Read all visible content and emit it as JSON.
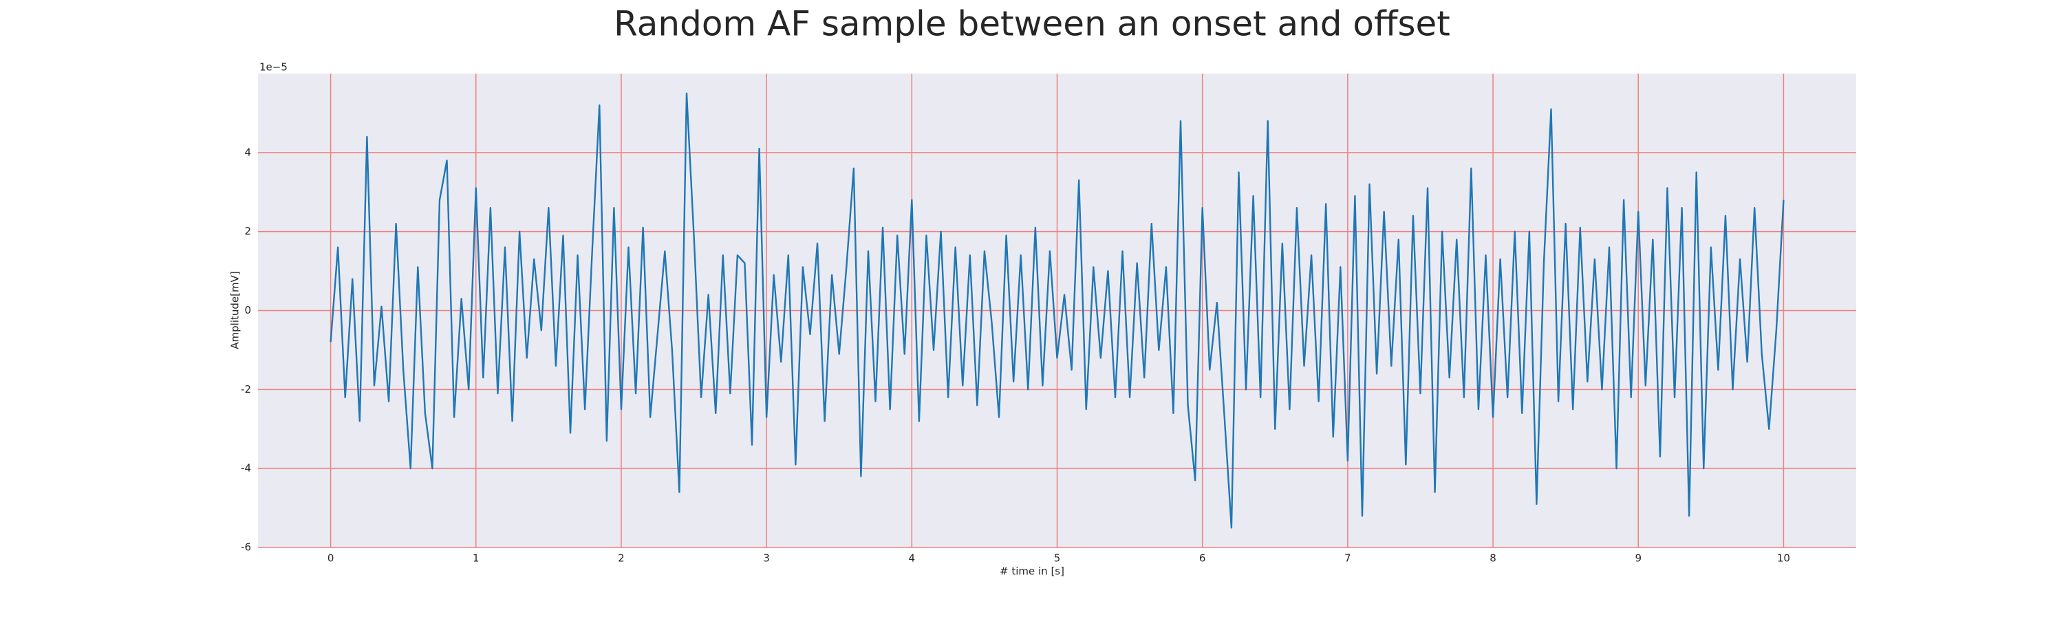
{
  "chart_data": {
    "type": "line",
    "title": "Random AF sample between an onset and offset",
    "xlabel": "# time in [s]",
    "ylabel": "Amplitude[mV]",
    "y_offset_label": "1e−5",
    "color": "#1f77b4",
    "background": "#eaeaf2",
    "grid": true,
    "grid_color": "#f08080",
    "xlim": [
      -0.5,
      10.5
    ],
    "xticks": [
      0,
      1,
      2,
      3,
      4,
      5,
      6,
      7,
      8,
      9,
      10
    ],
    "ylim": [
      -6,
      6
    ],
    "yticks": [
      -6,
      -4,
      -2,
      0,
      2,
      4
    ],
    "x": [
      0,
      0.05,
      0.1,
      0.15,
      0.2,
      0.25,
      0.3,
      0.35,
      0.4,
      0.45,
      0.5,
      0.55,
      0.6,
      0.65,
      0.7,
      0.75,
      0.8,
      0.85,
      0.9,
      0.95,
      1,
      1.05,
      1.1,
      1.15,
      1.2,
      1.25,
      1.3,
      1.35,
      1.4,
      1.45,
      1.5,
      1.55,
      1.6,
      1.65,
      1.7,
      1.75,
      1.8,
      1.85,
      1.9,
      1.95,
      2,
      2.05,
      2.1,
      2.15,
      2.2,
      2.25,
      2.3,
      2.35,
      2.4,
      2.45,
      2.5,
      2.55,
      2.6,
      2.65,
      2.7,
      2.75,
      2.8,
      2.85,
      2.9,
      2.95,
      3,
      3.05,
      3.1,
      3.15,
      3.2,
      3.25,
      3.3,
      3.35,
      3.4,
      3.45,
      3.5,
      3.55,
      3.6,
      3.65,
      3.7,
      3.75,
      3.8,
      3.85,
      3.9,
      3.95,
      4,
      4.05,
      4.1,
      4.15,
      4.2,
      4.25,
      4.3,
      4.35,
      4.4,
      4.45,
      4.5,
      4.55,
      4.6,
      4.65,
      4.7,
      4.75,
      4.8,
      4.85,
      4.9,
      4.95,
      5,
      5.05,
      5.1,
      5.15,
      5.2,
      5.25,
      5.3,
      5.35,
      5.4,
      5.45,
      5.5,
      5.55,
      5.6,
      5.65,
      5.7,
      5.75,
      5.8,
      5.85,
      5.9,
      5.95,
      6,
      6.05,
      6.1,
      6.15,
      6.2,
      6.25,
      6.3,
      6.35,
      6.4,
      6.45,
      6.5,
      6.55,
      6.6,
      6.65,
      6.7,
      6.75,
      6.8,
      6.85,
      6.9,
      6.95,
      7,
      7.05,
      7.1,
      7.15,
      7.2,
      7.25,
      7.3,
      7.35,
      7.4,
      7.45,
      7.5,
      7.55,
      7.6,
      7.65,
      7.7,
      7.75,
      7.8,
      7.85,
      7.9,
      7.95,
      8,
      8.05,
      8.1,
      8.15,
      8.2,
      8.25,
      8.3,
      8.35,
      8.4,
      8.45,
      8.5,
      8.55,
      8.6,
      8.65,
      8.7,
      8.75,
      8.8,
      8.85,
      8.9,
      8.95,
      9,
      9.05,
      9.1,
      9.15,
      9.2,
      9.25,
      9.3,
      9.35,
      9.4,
      9.45,
      9.5,
      9.55,
      9.6,
      9.65,
      9.7,
      9.75,
      9.8,
      9.85,
      9.9,
      9.95,
      10
    ],
    "values": [
      -0.8,
      1.6,
      -2.2,
      0.8,
      -2.8,
      4.4,
      -1.9,
      0.1,
      -2.3,
      2.2,
      -1.5,
      -4.0,
      1.1,
      -2.6,
      -4.0,
      2.8,
      3.8,
      -2.7,
      0.3,
      -2.0,
      3.1,
      -1.7,
      2.6,
      -2.1,
      1.6,
      -2.8,
      2.0,
      -1.2,
      1.3,
      -0.5,
      2.6,
      -1.4,
      1.9,
      -3.1,
      1.4,
      -2.5,
      1.5,
      5.2,
      -3.3,
      2.6,
      -2.5,
      1.6,
      -2.1,
      2.1,
      -2.7,
      -0.6,
      1.5,
      -1.0,
      -4.6,
      5.5,
      1.9,
      -2.2,
      0.4,
      -2.6,
      1.4,
      -2.1,
      1.4,
      1.2,
      -3.4,
      4.1,
      -2.7,
      0.9,
      -1.3,
      1.4,
      -3.9,
      1.1,
      -0.6,
      1.7,
      -2.8,
      0.9,
      -1.1,
      1.1,
      3.6,
      -4.2,
      1.5,
      -2.3,
      2.1,
      -2.5,
      1.9,
      -1.1,
      2.8,
      -2.8,
      1.9,
      -1.0,
      2.0,
      -2.2,
      1.6,
      -1.9,
      1.4,
      -2.4,
      1.5,
      -0.3,
      -2.7,
      1.9,
      -1.8,
      1.4,
      -2.0,
      2.1,
      -1.9,
      1.5,
      -1.2,
      0.4,
      -1.5,
      3.3,
      -2.5,
      1.1,
      -1.2,
      1.0,
      -2.2,
      1.5,
      -2.2,
      1.2,
      -1.7,
      2.2,
      -1.0,
      1.1,
      -2.6,
      4.8,
      -2.4,
      -4.3,
      2.6,
      -1.5,
      0.2,
      -2.6,
      -5.5,
      3.5,
      -2.0,
      2.9,
      -2.2,
      4.8,
      -3.0,
      1.7,
      -2.5,
      2.6,
      -1.4,
      1.4,
      -2.3,
      2.7,
      -3.2,
      1.1,
      -3.8,
      2.9,
      -5.2,
      3.2,
      -1.6,
      2.5,
      -1.4,
      1.8,
      -3.9,
      2.4,
      -2.1,
      3.1,
      -4.6,
      2.0,
      -1.7,
      1.8,
      -2.2,
      3.6,
      -2.5,
      1.4,
      -2.7,
      1.3,
      -2.2,
      2.0,
      -2.6,
      2.0,
      -4.9,
      1.2,
      5.1,
      -2.3,
      2.2,
      -2.5,
      2.1,
      -1.8,
      1.3,
      -2.0,
      1.6,
      -4.0,
      2.8,
      -2.2,
      2.5,
      -1.9,
      1.8,
      -3.7,
      3.1,
      -2.2,
      2.6,
      -5.2,
      3.5,
      -4.0,
      1.6,
      -1.5,
      2.4,
      -2.0,
      1.3,
      -1.3,
      2.6,
      -1.1,
      -3.0,
      -0.5,
      2.8
    ]
  }
}
